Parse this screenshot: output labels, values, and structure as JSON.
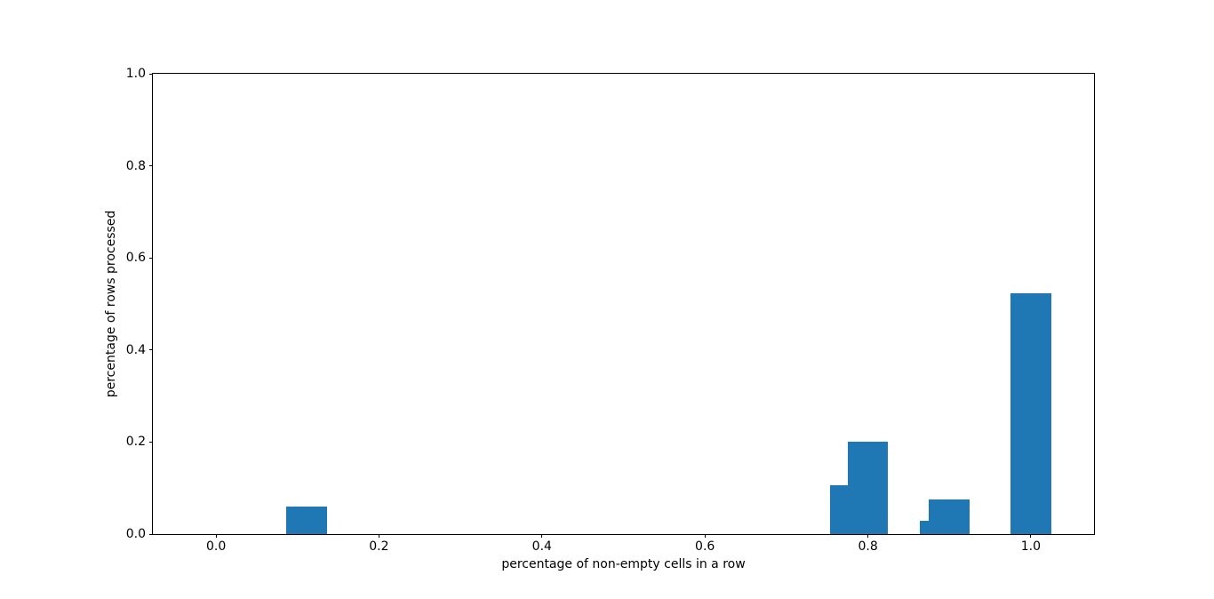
{
  "chart_data": {
    "type": "bar",
    "title": "",
    "xlabel": "percentage of non-empty cells in a row",
    "ylabel": "percentage of rows processed",
    "bar_color": "#1f77b4",
    "bar_width": 0.05,
    "bars": [
      {
        "x": 0.111,
        "y": 0.06
      },
      {
        "x": 0.778,
        "y": 0.107
      },
      {
        "x": 0.8,
        "y": 0.2
      },
      {
        "x": 0.889,
        "y": 0.03
      },
      {
        "x": 0.9,
        "y": 0.076
      },
      {
        "x": 1.0,
        "y": 0.524
      }
    ],
    "xlim": [
      -0.0775,
      1.0775
    ],
    "ylim": [
      0.0,
      1.0
    ],
    "xticks": [
      0.0,
      0.2,
      0.4,
      0.6,
      0.8,
      1.0
    ],
    "yticks": [
      0.0,
      0.2,
      0.4,
      0.6,
      0.8,
      1.0
    ],
    "tick_label_format": "one-decimal",
    "grid": false,
    "legend": null,
    "axis_color": "#000000",
    "background_color": "#ffffff"
  }
}
